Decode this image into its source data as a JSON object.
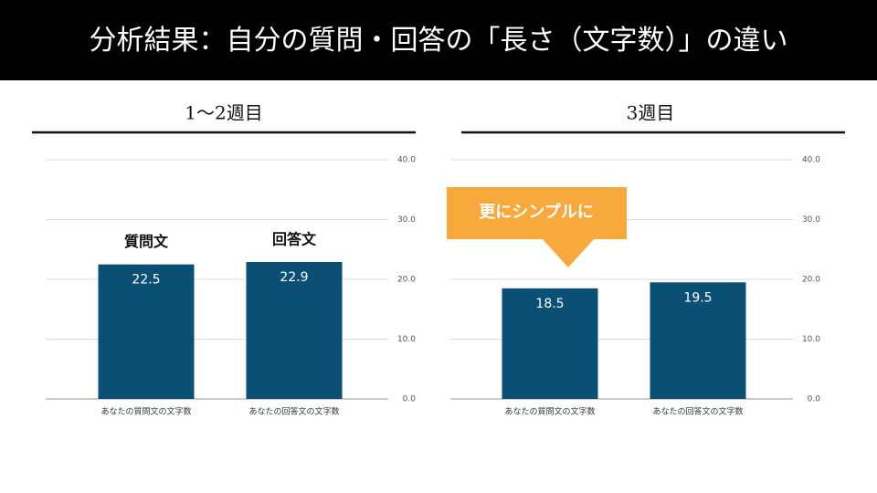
{
  "title": "分析結果：自分の質問・回答の「長さ（文字数）」の違い",
  "chart_data": [
    {
      "type": "bar",
      "title": "1～2週目",
      "categories": [
        "あなたの質問文の文字数",
        "あなたの回答文の文字数"
      ],
      "values": [
        22.5,
        22.9
      ],
      "color": "#0b4f75",
      "ylim": [
        0,
        40
      ],
      "yticks": [
        {
          "value": 0,
          "label": "0.0"
        },
        {
          "value": 10,
          "label": "10.0"
        },
        {
          "value": 20,
          "label": "20.0"
        },
        {
          "value": 30,
          "label": "30.0"
        },
        {
          "value": 40,
          "label": "40.0"
        }
      ],
      "grid": true,
      "annotations": [
        "質問文",
        "回答文"
      ]
    },
    {
      "type": "bar",
      "title": "3週目",
      "categories": [
        "あなたの質問文の文字数",
        "あなたの回答文の文字数"
      ],
      "values": [
        18.5,
        19.5
      ],
      "color": "#0b4f75",
      "ylim": [
        0,
        40
      ],
      "yticks": [
        {
          "value": 0,
          "label": "0.0"
        },
        {
          "value": 10,
          "label": "10.0"
        },
        {
          "value": 20,
          "label": "20.0"
        },
        {
          "value": 30,
          "label": "30.0"
        },
        {
          "value": 40,
          "label": "40.0"
        }
      ],
      "grid": true,
      "annotations": [
        "更にシンプルに"
      ]
    }
  ]
}
